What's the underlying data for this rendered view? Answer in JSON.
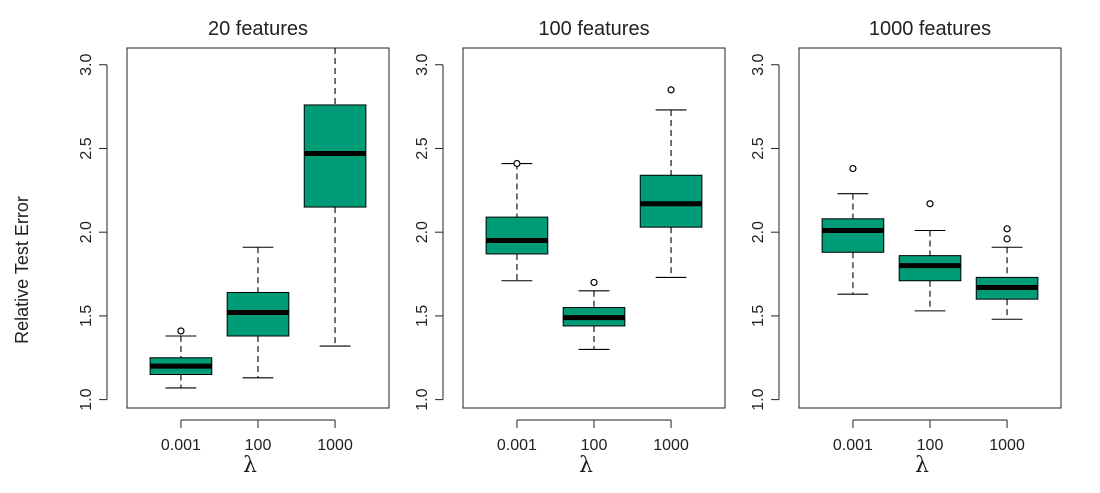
{
  "figure": {
    "ylabel": "Relative Test Error"
  },
  "chart_data": [
    {
      "type": "box",
      "title": "20 features",
      "xlabel": "λ",
      "categories": [
        "0.001",
        "100",
        "1000"
      ],
      "ylim": [
        0.95,
        3.1
      ],
      "yticks": [
        1.0,
        1.5,
        2.0,
        2.5,
        3.0
      ],
      "ytick_labels": [
        "1.0",
        "1.5",
        "2.0",
        "2.5",
        "3.0"
      ],
      "boxes": [
        {
          "whisker_low": 1.07,
          "q1": 1.15,
          "median": 1.2,
          "q3": 1.25,
          "whisker_high": 1.38,
          "outliers": [
            1.41
          ]
        },
        {
          "whisker_low": 1.13,
          "q1": 1.38,
          "median": 1.52,
          "q3": 1.64,
          "whisker_high": 1.91,
          "outliers": []
        },
        {
          "whisker_low": 1.32,
          "q1": 2.15,
          "median": 2.47,
          "q3": 2.76,
          "whisker_high": 3.12,
          "outliers": []
        }
      ]
    },
    {
      "type": "box",
      "title": "100 features",
      "xlabel": "λ",
      "categories": [
        "0.001",
        "100",
        "1000"
      ],
      "ylim": [
        0.95,
        3.1
      ],
      "yticks": [
        1.0,
        1.5,
        2.0,
        2.5,
        3.0
      ],
      "ytick_labels": [
        "1.0",
        "1.5",
        "2.0",
        "2.5",
        "3.0"
      ],
      "boxes": [
        {
          "whisker_low": 1.71,
          "q1": 1.87,
          "median": 1.95,
          "q3": 2.09,
          "whisker_high": 2.41,
          "outliers": [
            2.41
          ]
        },
        {
          "whisker_low": 1.3,
          "q1": 1.44,
          "median": 1.49,
          "q3": 1.55,
          "whisker_high": 1.65,
          "outliers": [
            1.7
          ]
        },
        {
          "whisker_low": 1.73,
          "q1": 2.03,
          "median": 2.17,
          "q3": 2.34,
          "whisker_high": 2.73,
          "outliers": [
            2.85
          ]
        }
      ]
    },
    {
      "type": "box",
      "title": "1000 features",
      "xlabel": "λ",
      "categories": [
        "0.001",
        "100",
        "1000"
      ],
      "ylim": [
        0.95,
        3.1
      ],
      "yticks": [
        1.0,
        1.5,
        2.0,
        2.5,
        3.0
      ],
      "ytick_labels": [
        "1.0",
        "1.5",
        "2.0",
        "2.5",
        "3.0"
      ],
      "boxes": [
        {
          "whisker_low": 1.63,
          "q1": 1.88,
          "median": 2.01,
          "q3": 2.08,
          "whisker_high": 2.23,
          "outliers": [
            2.38
          ]
        },
        {
          "whisker_low": 1.53,
          "q1": 1.71,
          "median": 1.8,
          "q3": 1.86,
          "whisker_high": 2.01,
          "outliers": [
            2.17
          ]
        },
        {
          "whisker_low": 1.48,
          "q1": 1.6,
          "median": 1.67,
          "q3": 1.73,
          "whisker_high": 1.91,
          "outliers": [
            1.96,
            2.02
          ]
        }
      ]
    }
  ],
  "colors": {
    "box_fill": "#009b77",
    "median": "#000000",
    "axis": "#222222"
  }
}
